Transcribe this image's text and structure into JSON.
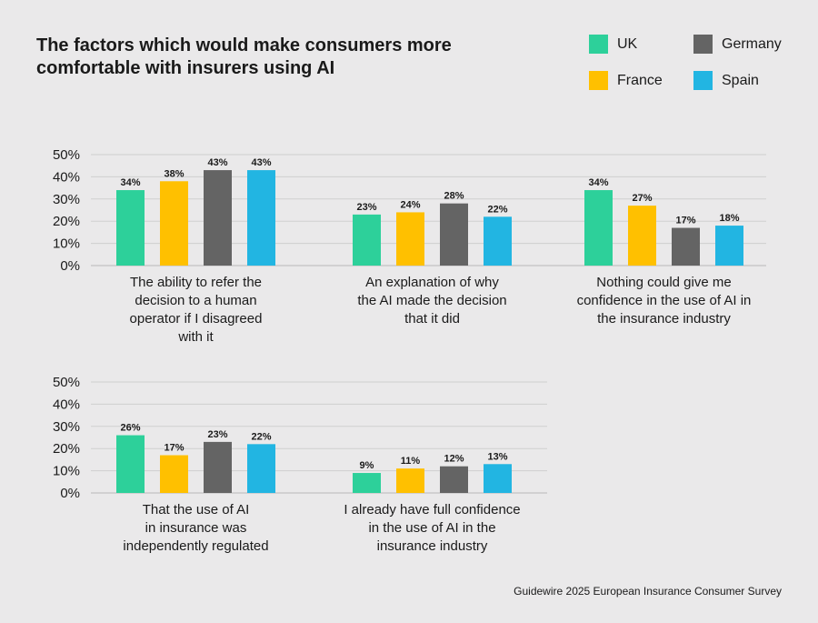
{
  "title": "The factors which would make consumers more comfortable with insurers using AI",
  "source": "Guidewire 2025 European Insurance Consumer Survey",
  "legend": [
    {
      "name": "UK",
      "color": "#2dd09a"
    },
    {
      "name": "Germany",
      "color": "#646464"
    },
    {
      "name": "France",
      "color": "#ffc000"
    },
    {
      "name": "Spain",
      "color": "#22b5e2"
    }
  ],
  "chart_data": {
    "type": "bar",
    "title": "The factors which would make consumers more comfortable with insurers using AI",
    "xlabel": "",
    "ylabel": "",
    "ylim": [
      0,
      50
    ],
    "yticks": [
      "50%",
      "40%",
      "30%",
      "20%",
      "10%",
      "0%"
    ],
    "series_names": [
      "UK",
      "France",
      "Germany",
      "Spain"
    ],
    "series_colors": [
      "#2dd09a",
      "#ffc000",
      "#646464",
      "#22b5e2"
    ],
    "groups": [
      {
        "category": [
          "The ability to refer the",
          "decision to a human",
          "operator if I disagreed",
          "with it"
        ],
        "values": [
          34,
          38,
          43,
          43
        ],
        "labels": [
          "34%",
          "38%",
          "43%",
          "43%"
        ]
      },
      {
        "category": [
          "An explanation of why",
          "the AI made the decision",
          "that it did"
        ],
        "values": [
          23,
          24,
          28,
          22
        ],
        "labels": [
          "23%",
          "24%",
          "28%",
          "22%"
        ]
      },
      {
        "category": [
          "Nothing could give me",
          "confidence in the use of AI in",
          "the insurance industry"
        ],
        "values": [
          34,
          27,
          17,
          18
        ],
        "labels": [
          "34%",
          "27%",
          "17%",
          "18%"
        ]
      },
      {
        "category": [
          "That the use of AI",
          "in insurance was",
          "independently regulated"
        ],
        "values": [
          26,
          17,
          23,
          22
        ],
        "labels": [
          "26%",
          "17%",
          "23%",
          "22%"
        ]
      },
      {
        "category": [
          "I already have full confidence",
          "in the use of AI in the",
          "insurance industry"
        ],
        "values": [
          9,
          11,
          12,
          13
        ],
        "labels": [
          "9%",
          "11%",
          "12%",
          "13%"
        ]
      }
    ]
  }
}
